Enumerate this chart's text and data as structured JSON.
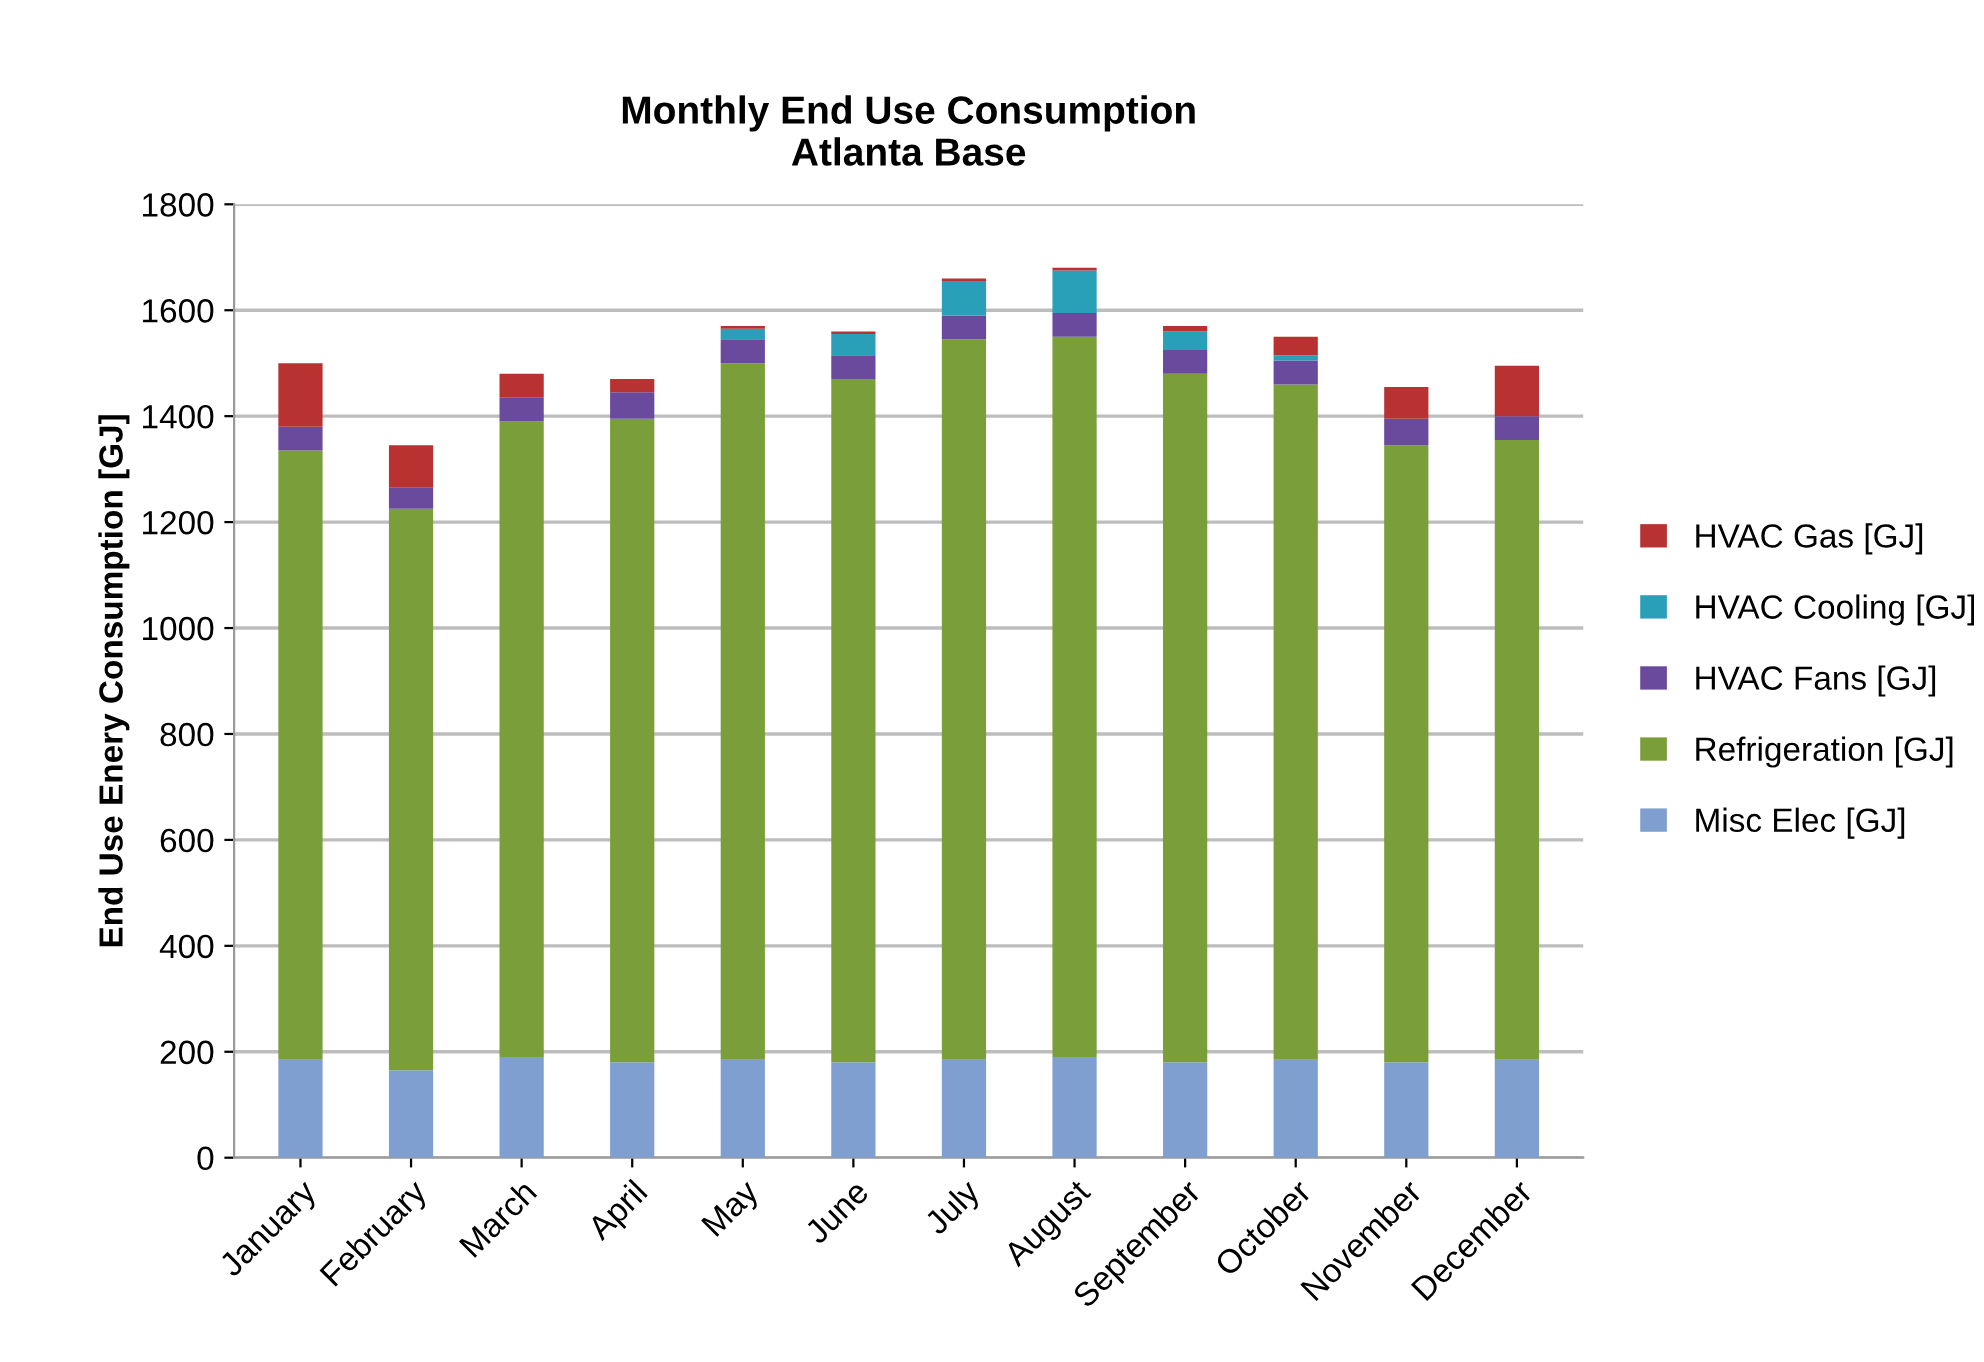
{
  "chart_data": {
    "type": "bar",
    "stacked": true,
    "title": "Monthly End Use Consumption\nAtlanta Base",
    "ylabel": "End Use Enery Consumption [GJ]",
    "categories": [
      "January",
      "February",
      "March",
      "April",
      "May",
      "June",
      "July",
      "August",
      "September",
      "October",
      "November",
      "December"
    ],
    "series": [
      {
        "name": "Misc Elec [GJ]",
        "color": "#7f9fd0",
        "values": [
          185,
          165,
          190,
          180,
          185,
          180,
          185,
          190,
          180,
          185,
          180,
          185
        ]
      },
      {
        "name": "Refrigeration [GJ]",
        "color": "#7a9e3a",
        "values": [
          1150,
          1060,
          1200,
          1215,
          1315,
          1290,
          1360,
          1360,
          1300,
          1275,
          1165,
          1170
        ]
      },
      {
        "name": "HVAC Fans [GJ]",
        "color": "#6a4a9c",
        "values": [
          45,
          40,
          45,
          50,
          45,
          45,
          45,
          45,
          45,
          45,
          50,
          45
        ]
      },
      {
        "name": "HVAC Cooling [GJ]",
        "color": "#2a9fb8",
        "values": [
          0,
          0,
          0,
          0,
          20,
          40,
          65,
          80,
          35,
          10,
          0,
          0
        ]
      },
      {
        "name": "HVAC Gas [GJ]",
        "color": "#b83232",
        "values": [
          120,
          80,
          45,
          25,
          5,
          5,
          5,
          5,
          10,
          35,
          60,
          95
        ]
      }
    ],
    "ylim": [
      0,
      1800
    ],
    "yticks": [
      0,
      200,
      400,
      600,
      800,
      1000,
      1200,
      1400,
      1600,
      1800
    ],
    "grid": "y",
    "legend": "right"
  }
}
